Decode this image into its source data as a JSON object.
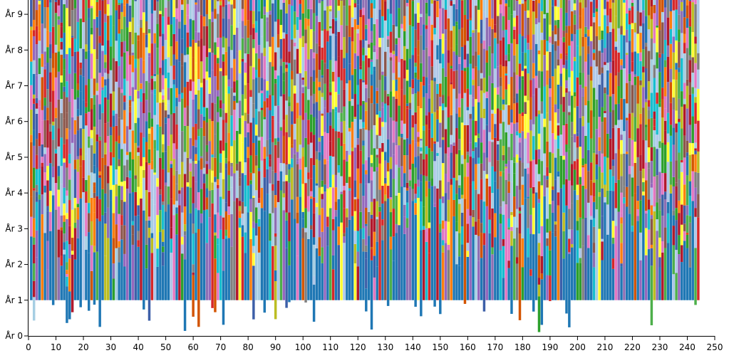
{
  "chart_data": {
    "type": "bar",
    "stacked": true,
    "title": "",
    "xlabel": "",
    "ylabel": "",
    "xlim": [
      0,
      250
    ],
    "ylim": [
      0,
      9.4
    ],
    "grid": false,
    "legend": "none",
    "x_ticks": [
      {
        "value": 0,
        "label": "0"
      },
      {
        "value": 10,
        "label": "10"
      },
      {
        "value": 20,
        "label": "20"
      },
      {
        "value": 30,
        "label": "30"
      },
      {
        "value": 40,
        "label": "40"
      },
      {
        "value": 50,
        "label": "50"
      },
      {
        "value": 60,
        "label": "60"
      },
      {
        "value": 70,
        "label": "70"
      },
      {
        "value": 80,
        "label": "80"
      },
      {
        "value": 90,
        "label": "90"
      },
      {
        "value": 100,
        "label": "100"
      },
      {
        "value": 110,
        "label": "110"
      },
      {
        "value": 120,
        "label": "120"
      },
      {
        "value": 130,
        "label": "130"
      },
      {
        "value": 140,
        "label": "140"
      },
      {
        "value": 150,
        "label": "150"
      },
      {
        "value": 160,
        "label": "160"
      },
      {
        "value": 170,
        "label": "170"
      },
      {
        "value": 180,
        "label": "180"
      },
      {
        "value": 190,
        "label": "190"
      },
      {
        "value": 200,
        "label": "200"
      },
      {
        "value": 210,
        "label": "210"
      },
      {
        "value": 220,
        "label": "220"
      },
      {
        "value": 230,
        "label": "230"
      },
      {
        "value": 240,
        "label": "240"
      },
      {
        "value": 250,
        "label": "250"
      }
    ],
    "y_ticks": [
      {
        "value": 0,
        "label": "År 0"
      },
      {
        "value": 1,
        "label": "År 1"
      },
      {
        "value": 2,
        "label": "År 2"
      },
      {
        "value": 3,
        "label": "År 3"
      },
      {
        "value": 4,
        "label": "År 4"
      },
      {
        "value": 5,
        "label": "År 5"
      },
      {
        "value": 6,
        "label": "År 6"
      },
      {
        "value": 7,
        "label": "År 7"
      },
      {
        "value": 8,
        "label": "År 8"
      },
      {
        "value": 9,
        "label": "År 9"
      }
    ],
    "palette": [
      "#1f77b4",
      "#ff7f0e",
      "#2ca02c",
      "#d62728",
      "#9467bd",
      "#8c564b",
      "#e377c2",
      "#7f7f7f",
      "#bcbd22",
      "#17becf",
      "#ffff33",
      "#aec7e8",
      "#d35400",
      "#b2182b",
      "#3d5fa8",
      "#8e6fb3",
      "#4daf4a",
      "#a6cee3"
    ],
    "bar_count": 244,
    "bar_value_note": "",
    "bars_seed": 24
  }
}
